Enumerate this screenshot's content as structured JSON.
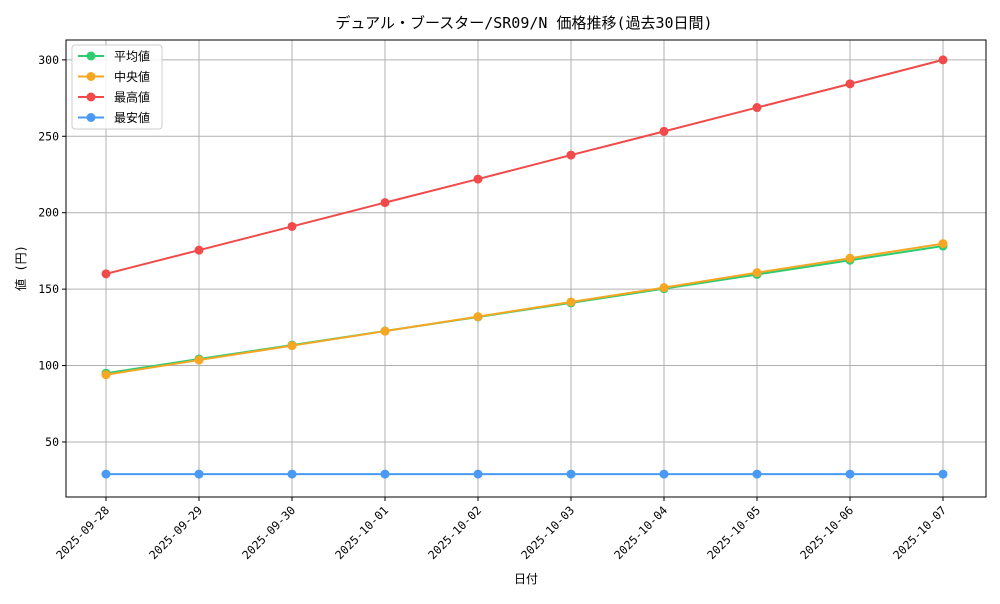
{
  "chart_data": {
    "type": "line",
    "title": "デュアル・ブースター/SR09/N 価格推移(過去30日間)",
    "xlabel": "日付",
    "ylabel": "値 (円)",
    "categories": [
      "2025-09-28",
      "2025-09-29",
      "2025-09-30",
      "2025-10-01",
      "2025-10-02",
      "2025-10-03",
      "2025-10-04",
      "2025-10-05",
      "2025-10-06",
      "2025-10-07"
    ],
    "ylim": [
      14,
      313
    ],
    "yticks": [
      50,
      100,
      150,
      200,
      250,
      300
    ],
    "grid": true,
    "legend_position": "top-left",
    "series": [
      {
        "name": "平均値",
        "color": "#2ecc71",
        "values": [
          95,
          104.3,
          113.4,
          122.6,
          131.8,
          141,
          150.3,
          159.6,
          168.9,
          178.2
        ]
      },
      {
        "name": "中央値",
        "color": "#f5a623",
        "values": [
          94,
          103.6,
          113,
          122.5,
          132,
          141.6,
          151,
          160.8,
          170.2,
          179.8
        ]
      },
      {
        "name": "最高値",
        "color": "#f04a4a",
        "values": [
          160,
          175.5,
          191,
          206.6,
          222,
          237.7,
          253.2,
          268.8,
          284.3,
          300
        ]
      },
      {
        "name": "最安値",
        "color": "#4a9af5",
        "values": [
          29,
          29,
          29,
          29,
          29,
          29,
          29,
          29,
          29,
          29
        ]
      }
    ]
  }
}
